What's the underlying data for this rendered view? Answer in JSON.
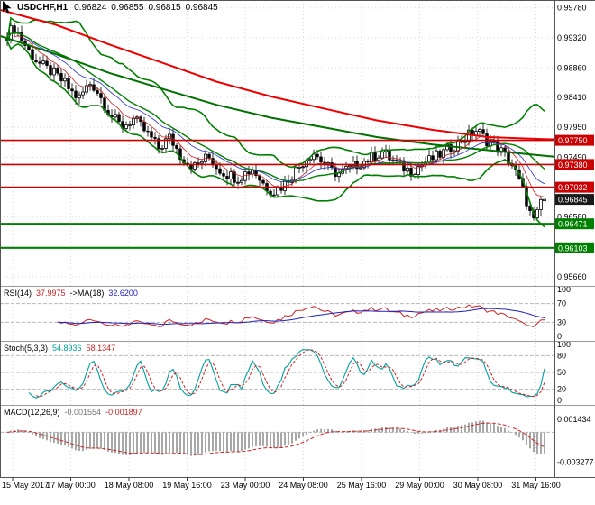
{
  "header": {
    "symbol": "USDCHF,H1",
    "open": "0.96824",
    "high": "0.96855",
    "low": "0.96815",
    "close": "0.96845"
  },
  "chart_data": {
    "type": "candlestick",
    "title": "USDCHF,H1",
    "x_labels": [
      "15 May 2017",
      "17 May 00:00",
      "18 May 08:00",
      "19 May 16:00",
      "23 May 00:00",
      "24 May 08:00",
      "25 May 16:00",
      "29 May 00:00",
      "30 May 08:00",
      "31 May 16:00"
    ],
    "quote": {
      "open": 0.96824,
      "high": 0.96855,
      "low": 0.96815,
      "close": 0.96845
    },
    "main": {
      "price_max": 0.999,
      "price_min": 0.9552,
      "axis_ticks": [
        0.9978,
        0.9932,
        0.9886,
        0.9841,
        0.9795,
        0.9749,
        0.9658,
        0.9566
      ],
      "closes": [
        0.9936,
        0.9943,
        0.9947,
        0.994,
        0.993,
        0.9921,
        0.9912,
        0.9904,
        0.9898,
        0.9892,
        0.9888,
        0.9884,
        0.9881,
        0.9877,
        0.9872,
        0.9867,
        0.9862,
        0.9855,
        0.9848,
        0.9843,
        0.984,
        0.9848,
        0.9856,
        0.9862,
        0.9858,
        0.985,
        0.984,
        0.983,
        0.982,
        0.9812,
        0.9806,
        0.98,
        0.9797,
        0.98,
        0.9804,
        0.9807,
        0.9802,
        0.9796,
        0.979,
        0.9784,
        0.9778,
        0.977,
        0.9763,
        0.9768,
        0.9774,
        0.9779,
        0.9771,
        0.9762,
        0.9752,
        0.9747,
        0.9742,
        0.9738,
        0.9735,
        0.9739,
        0.9744,
        0.9747,
        0.9748,
        0.9742,
        0.9735,
        0.973,
        0.9726,
        0.9723,
        0.9721,
        0.9719,
        0.9718,
        0.9721,
        0.9725,
        0.9728,
        0.9731,
        0.9724,
        0.9716,
        0.9709,
        0.9703,
        0.97,
        0.9697,
        0.97,
        0.9704,
        0.971,
        0.9716,
        0.9722,
        0.9729,
        0.9735,
        0.9742,
        0.9748,
        0.9753,
        0.9756,
        0.975,
        0.9744,
        0.9738,
        0.9733,
        0.9728,
        0.9726,
        0.9724,
        0.9727,
        0.973,
        0.9732,
        0.9735,
        0.9738,
        0.9741,
        0.9743,
        0.9746,
        0.9749,
        0.9752,
        0.9754,
        0.9757,
        0.9752,
        0.9748,
        0.9744,
        0.974,
        0.9736,
        0.9733,
        0.973,
        0.9728,
        0.9731,
        0.9735,
        0.9738,
        0.9742,
        0.9744,
        0.9747,
        0.975,
        0.9753,
        0.9756,
        0.976,
        0.9764,
        0.9768,
        0.9771,
        0.9775,
        0.9779,
        0.9783,
        0.9787,
        0.979,
        0.9786,
        0.978,
        0.9775,
        0.9772,
        0.9768,
        0.9763,
        0.9758,
        0.9752,
        0.9745,
        0.9737,
        0.9725,
        0.9712,
        0.9698,
        0.9682,
        0.9663,
        0.965,
        0.9661,
        0.96824,
        0.96845
      ],
      "band_color": "#008000",
      "ma_long_red": {
        "color": "#ee0000",
        "points": [
          [
            0,
            0.9975
          ],
          [
            0.1,
            0.9952
          ],
          [
            0.2,
            0.9921
          ],
          [
            0.3,
            0.98915
          ],
          [
            0.39,
            0.9865
          ],
          [
            0.49,
            0.9842
          ],
          [
            0.59,
            0.98225
          ],
          [
            0.68,
            0.98055
          ],
          [
            0.78,
            0.9791
          ],
          [
            0.88,
            0.978
          ],
          [
            0.98,
            0.9777
          ],
          [
            1,
            0.97765
          ]
        ]
      },
      "ma_long_green": {
        "color": "#007000",
        "points": [
          [
            0,
            0.9935
          ],
          [
            0.1,
            0.9907
          ],
          [
            0.2,
            0.98775
          ],
          [
            0.3,
            0.9852
          ],
          [
            0.39,
            0.98295
          ],
          [
            0.49,
            0.98095
          ],
          [
            0.59,
            0.9794
          ],
          [
            0.68,
            0.978
          ],
          [
            0.78,
            0.97685
          ],
          [
            0.88,
            0.976
          ],
          [
            0.98,
            0.97515
          ],
          [
            1,
            0.975
          ]
        ]
      },
      "h_lines": [
        {
          "price": 0.9775,
          "label": "0.97750",
          "color": "#cc0000"
        },
        {
          "price": 0.9738,
          "label": "0.97380",
          "color": "#cc0000"
        },
        {
          "price": 0.97032,
          "label": "0.97032",
          "color": "#cc0000"
        },
        {
          "price": 0.96471,
          "label": "0.96471",
          "color": "#008000"
        },
        {
          "price": 0.96103,
          "label": "0.96103",
          "color": "#008000"
        }
      ],
      "current_price": {
        "label": "0.96845",
        "badge_color": "#1a1a1a"
      }
    },
    "rsi": {
      "name": "RSI(14)",
      "value": "37.9975",
      "ma_name": "->MA(18)",
      "ma_value": "32.6200",
      "axis": [
        100,
        70,
        30,
        0
      ],
      "levels": [
        70,
        30
      ],
      "line_color": "#cc2222",
      "ma_color": "#2020bb"
    },
    "stoch": {
      "name": "Stoch(5,3,3)",
      "value": "54.8936",
      "signal_value": "58.1347",
      "axis": [
        100,
        80,
        50,
        20,
        0
      ],
      "levels": [
        80,
        50,
        20
      ],
      "k_color": "#00a0a0",
      "d_color": "#cc2222"
    },
    "macd": {
      "name": "MACD(12,26,9)",
      "value": "-0.001554",
      "signal_value": "-0.001897",
      "vmax": 0.0026,
      "vmin": -0.0044,
      "axis_labels": [
        {
          "v": 0.001434,
          "label": "0.001434"
        },
        {
          "v": -0.003277,
          "label": "-0.003277"
        }
      ],
      "hist_color": "#a8a8a8",
      "signal_color": "#cc2222"
    }
  }
}
